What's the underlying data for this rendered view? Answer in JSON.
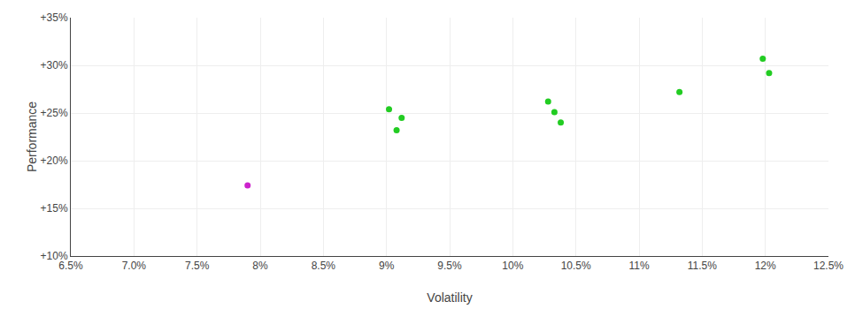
{
  "chart_data": {
    "type": "scatter",
    "xlabel": "Volatility",
    "ylabel": "Performance",
    "grid": true,
    "xlim": [
      0.065,
      0.125
    ],
    "ylim": [
      0.1,
      0.35
    ],
    "xticks": [
      {
        "value": 0.065,
        "label": "6.5%"
      },
      {
        "value": 0.07,
        "label": "7.0%"
      },
      {
        "value": 0.075,
        "label": "7.5%"
      },
      {
        "value": 0.08,
        "label": "8%"
      },
      {
        "value": 0.085,
        "label": "8.5%"
      },
      {
        "value": 0.09,
        "label": "9%"
      },
      {
        "value": 0.095,
        "label": "9.5%"
      },
      {
        "value": 0.1,
        "label": "10%"
      },
      {
        "value": 0.105,
        "label": "10.5%"
      },
      {
        "value": 0.11,
        "label": "11%"
      },
      {
        "value": 0.115,
        "label": "11.5%"
      },
      {
        "value": 0.12,
        "label": "12%"
      },
      {
        "value": 0.125,
        "label": "12.5%"
      }
    ],
    "yticks": [
      {
        "value": 0.1,
        "label": "+10%"
      },
      {
        "value": 0.15,
        "label": "+15%"
      },
      {
        "value": 0.2,
        "label": "+20%"
      },
      {
        "value": 0.25,
        "label": "+25%"
      },
      {
        "value": 0.3,
        "label": "+30%"
      },
      {
        "value": 0.35,
        "label": "+35%"
      }
    ],
    "series": [
      {
        "color": "#22cc22",
        "x": [
          0.0902,
          0.0912,
          0.0908,
          0.1028,
          0.1033,
          0.1038,
          0.1132,
          0.1198,
          0.1203
        ],
        "values": [
          0.254,
          0.245,
          0.232,
          0.262,
          0.251,
          0.24,
          0.272,
          0.307,
          0.292
        ]
      },
      {
        "color": "#cc22cc",
        "x": [
          0.079
        ],
        "values": [
          0.174
        ]
      }
    ]
  }
}
